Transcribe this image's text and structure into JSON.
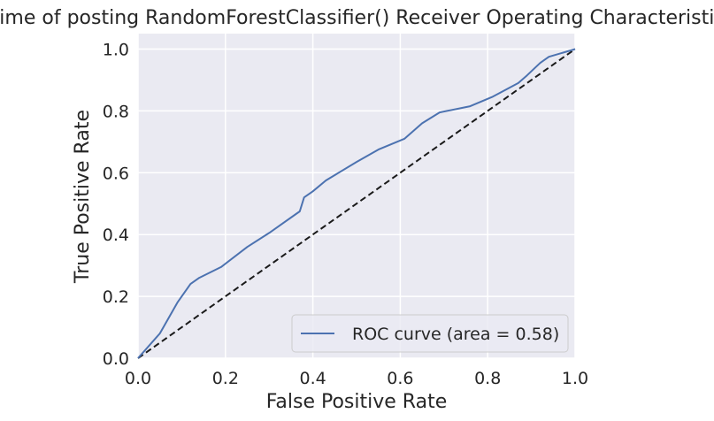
{
  "chart_data": {
    "type": "line",
    "title": "Time of posting RandomForestClassifier() Receiver Operating Characteristic",
    "xlabel": "False Positive Rate",
    "ylabel": "True Positive Rate",
    "xlim": [
      0.0,
      1.0
    ],
    "ylim": [
      0.0,
      1.05
    ],
    "xticks": [
      0.0,
      0.2,
      0.4,
      0.6,
      0.8,
      1.0
    ],
    "yticks": [
      0.0,
      0.2,
      0.4,
      0.6,
      0.8,
      1.0
    ],
    "xtick_labels": [
      "0.0",
      "0.2",
      "0.4",
      "0.6",
      "0.8",
      "1.0"
    ],
    "ytick_labels": [
      "0.0",
      "0.2",
      "0.4",
      "0.6",
      "0.8",
      "1.0"
    ],
    "grid": true,
    "legend_position": "lower-right",
    "series": [
      {
        "name": "ROC curve (area = 0.58)",
        "color": "#4c72b0",
        "style": "solid",
        "x": [
          0.0,
          0.05,
          0.09,
          0.12,
          0.14,
          0.19,
          0.25,
          0.3,
          0.36,
          0.37,
          0.38,
          0.4,
          0.43,
          0.5,
          0.55,
          0.61,
          0.65,
          0.69,
          0.76,
          0.81,
          0.87,
          0.89,
          0.92,
          0.93,
          0.94,
          1.0
        ],
        "y": [
          0.0,
          0.08,
          0.18,
          0.24,
          0.26,
          0.295,
          0.36,
          0.405,
          0.465,
          0.475,
          0.52,
          0.54,
          0.575,
          0.635,
          0.675,
          0.71,
          0.76,
          0.795,
          0.815,
          0.845,
          0.89,
          0.915,
          0.955,
          0.965,
          0.975,
          1.0
        ]
      },
      {
        "color": "#1a1a1a",
        "style": "dashed",
        "x": [
          0.0,
          1.0
        ],
        "y": [
          0.0,
          1.0
        ]
      }
    ]
  }
}
